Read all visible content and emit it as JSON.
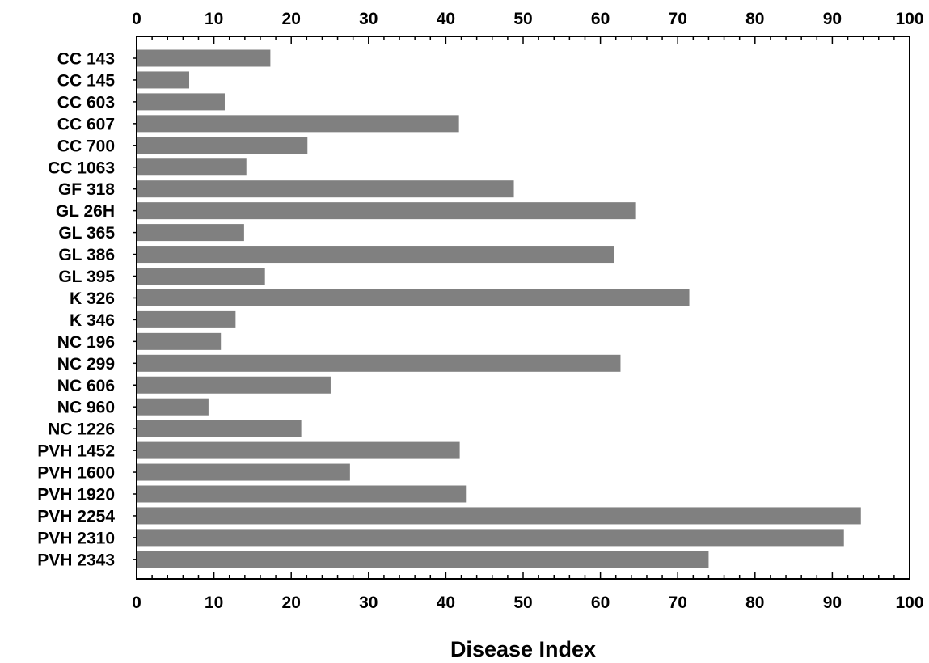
{
  "chart_data": {
    "type": "bar",
    "orientation": "horizontal",
    "title": "",
    "xlabel": "Disease Index",
    "ylabel": "",
    "xlim": [
      0,
      100
    ],
    "x_ticks": [
      0,
      10,
      20,
      30,
      40,
      50,
      60,
      70,
      80,
      90,
      100
    ],
    "x_axis_position": "top and bottom",
    "grid": false,
    "legend": "none",
    "bar_color": "#808080",
    "categories": [
      "CC 143",
      "CC 145",
      "CC 603",
      "CC 607",
      "CC 700",
      "CC 1063",
      "GF 318",
      "GL 26H",
      "GL 365",
      "GL 386",
      "GL 395",
      "K 326",
      "K 346",
      "NC 196",
      "NC 299",
      "NC 606",
      "NC 960",
      "NC 1226",
      "PVH 1452",
      "PVH 1600",
      "PVH 1920",
      "PVH 2254",
      "PVH 2310",
      "PVH 2343"
    ],
    "values": [
      17.3,
      6.8,
      11.4,
      41.7,
      22.1,
      14.2,
      48.8,
      64.5,
      13.9,
      61.8,
      16.6,
      71.5,
      12.8,
      10.9,
      62.6,
      25.1,
      9.3,
      21.3,
      41.8,
      27.6,
      42.6,
      93.7,
      91.5,
      74.0
    ]
  }
}
